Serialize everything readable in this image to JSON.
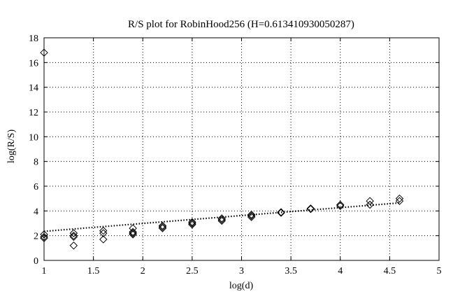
{
  "chart_data": {
    "type": "scatter",
    "title": "R/S plot for RobinHood256 (H=0.613410930050287)",
    "xlabel": "log(d)",
    "ylabel": "log(R/S)",
    "xlim": [
      1,
      5
    ],
    "ylim": [
      0,
      18
    ],
    "xticks": [
      "1",
      "1.5",
      "2",
      "2.5",
      "3",
      "3.5",
      "4",
      "4.5",
      "5"
    ],
    "yticks": [
      "0",
      "2",
      "4",
      "6",
      "8",
      "10",
      "12",
      "14",
      "16",
      "18"
    ],
    "grid": true,
    "marker": "diamond",
    "points": [
      [
        1.0,
        16.8
      ],
      [
        1.0,
        2.1
      ],
      [
        1.0,
        1.9
      ],
      [
        1.0,
        1.8
      ],
      [
        1.3,
        2.2
      ],
      [
        1.3,
        2.0
      ],
      [
        1.3,
        1.9
      ],
      [
        1.3,
        1.2
      ],
      [
        1.6,
        2.4
      ],
      [
        1.6,
        2.2
      ],
      [
        1.6,
        1.7
      ],
      [
        1.9,
        2.6
      ],
      [
        1.9,
        2.3
      ],
      [
        1.9,
        2.2
      ],
      [
        1.9,
        2.1
      ],
      [
        2.2,
        2.8
      ],
      [
        2.2,
        2.7
      ],
      [
        2.2,
        2.6
      ],
      [
        2.5,
        3.1
      ],
      [
        2.5,
        3.0
      ],
      [
        2.5,
        2.9
      ],
      [
        2.8,
        3.4
      ],
      [
        2.8,
        3.3
      ],
      [
        2.8,
        3.2
      ],
      [
        3.1,
        3.7
      ],
      [
        3.1,
        3.6
      ],
      [
        3.1,
        3.5
      ],
      [
        3.4,
        3.9
      ],
      [
        3.4,
        3.85
      ],
      [
        3.7,
        4.2
      ],
      [
        3.7,
        4.15
      ],
      [
        4.0,
        4.5
      ],
      [
        4.0,
        4.4
      ],
      [
        4.3,
        4.8
      ],
      [
        4.3,
        4.5
      ],
      [
        4.6,
        5.0
      ],
      [
        4.6,
        4.8
      ]
    ],
    "fit_line": {
      "style": "dotted",
      "x": [
        1.0,
        4.6
      ],
      "y": [
        2.35,
        4.65
      ]
    }
  }
}
